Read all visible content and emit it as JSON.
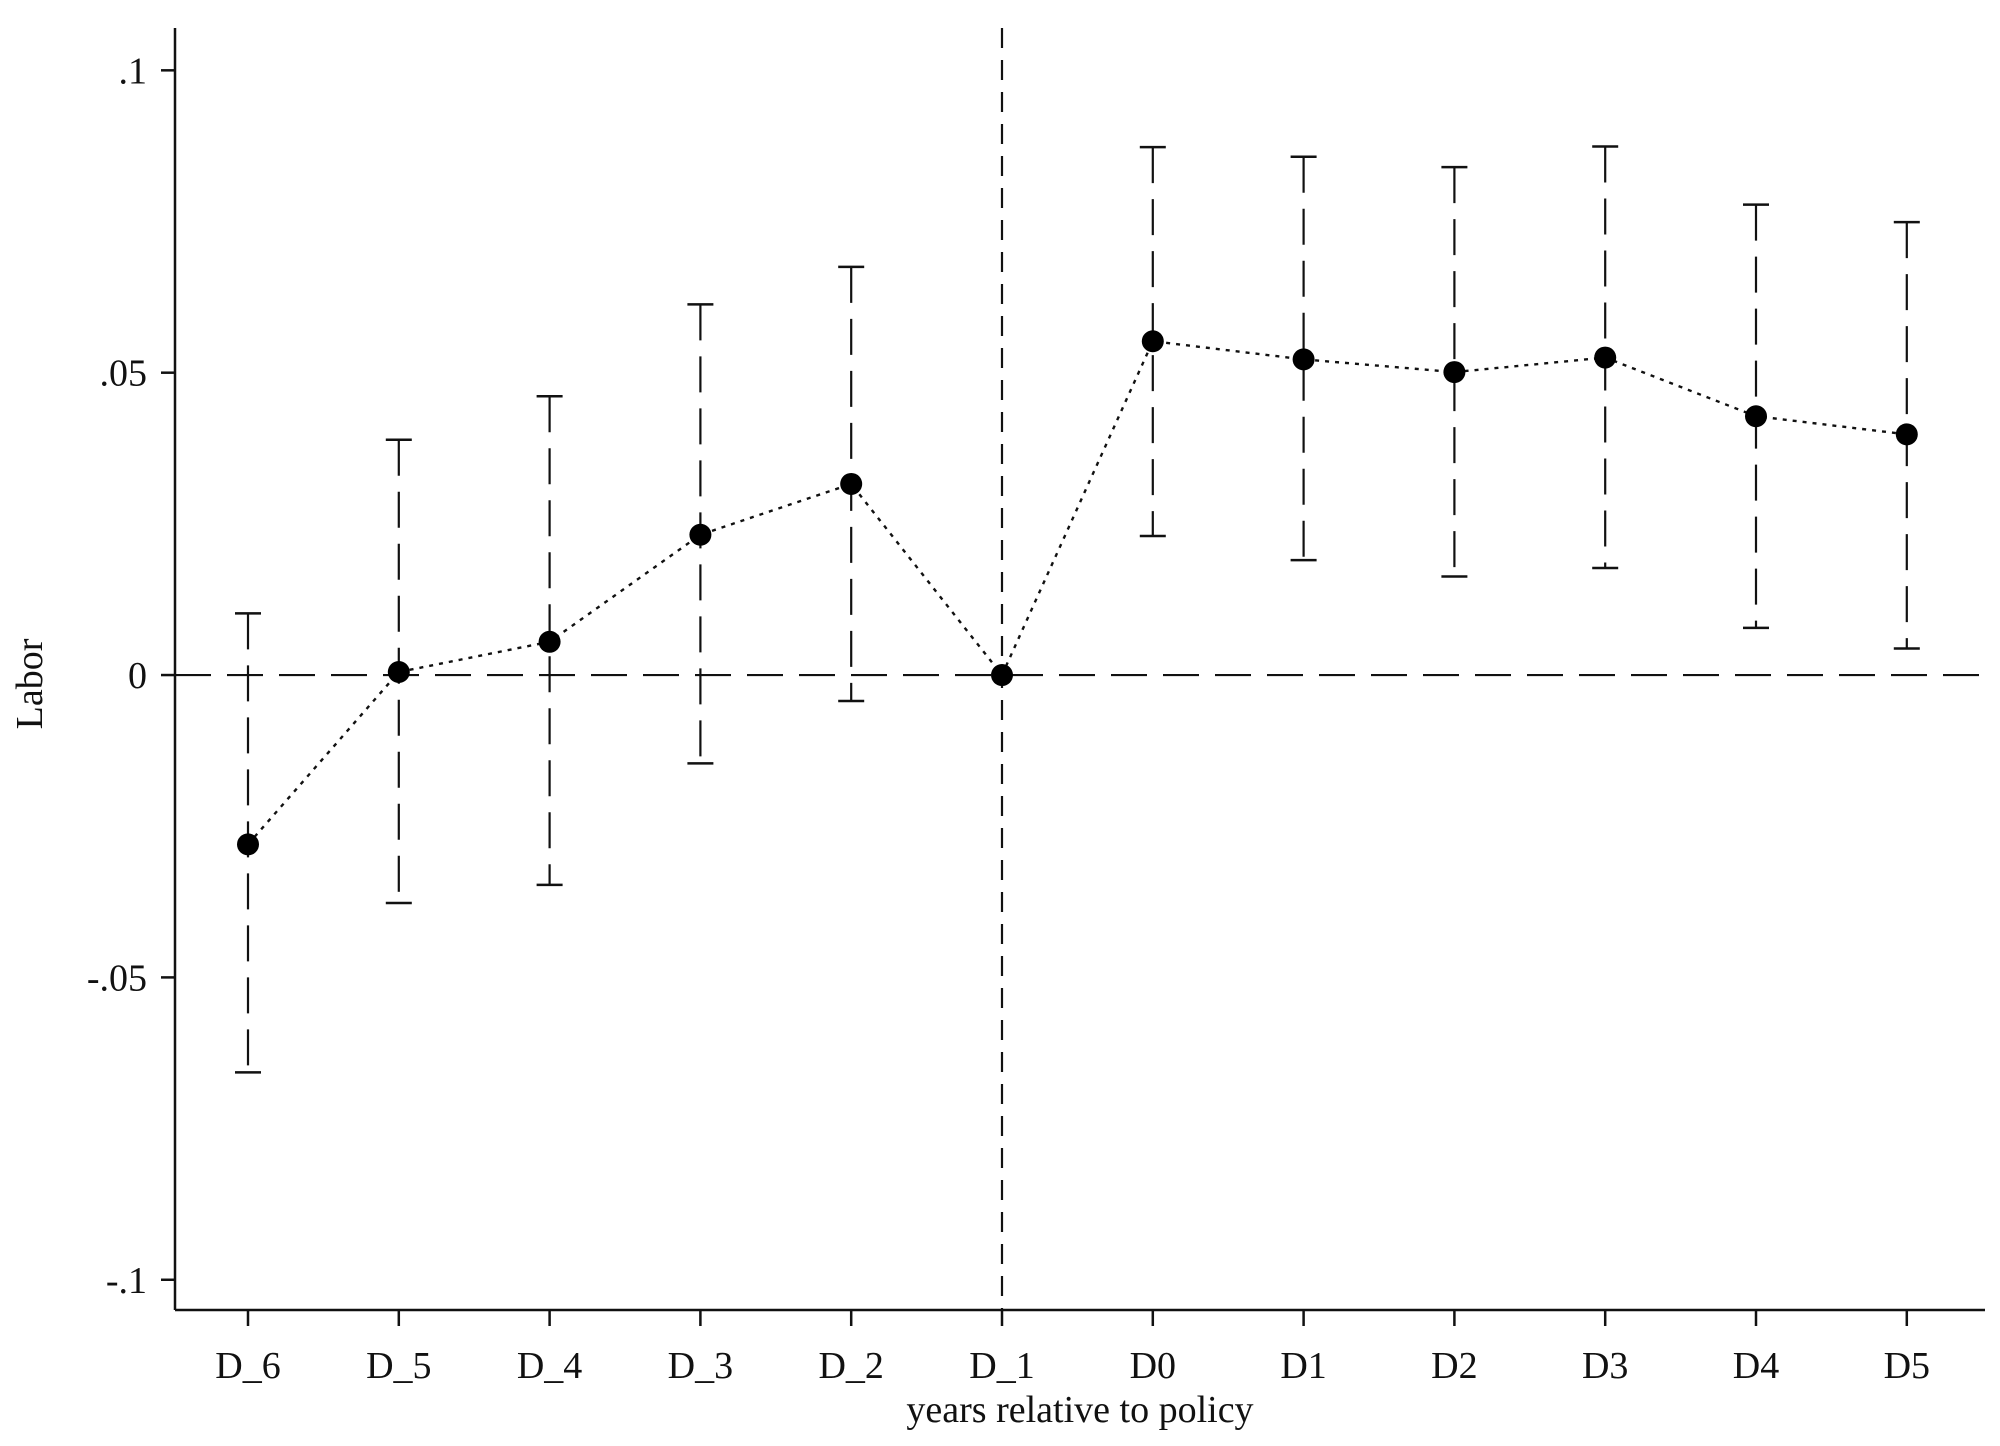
{
  "chart_data": {
    "type": "scatter",
    "xlabel": "years relative to policy",
    "ylabel": "Labor",
    "categories": [
      "D_6",
      "D_5",
      "D_4",
      "D_3",
      "D_2",
      "D_1",
      "D0",
      "D1",
      "D2",
      "D3",
      "D4",
      "D5"
    ],
    "series": [
      {
        "values": [
          -0.028,
          0.0005,
          0.0055,
          0.0232,
          0.0316,
          0.0,
          0.0552,
          0.0522,
          0.0501,
          0.0525,
          0.0428,
          0.0398
        ],
        "ci_lower": [
          -0.0657,
          -0.0377,
          -0.0347,
          -0.0146,
          -0.0043,
          null,
          0.023,
          0.019,
          0.0163,
          0.0177,
          0.0078,
          0.0044
        ],
        "ci_upper": [
          0.0102,
          0.0389,
          0.0461,
          0.0613,
          0.0675,
          null,
          0.0873,
          0.0857,
          0.084,
          0.0874,
          0.0778,
          0.0749
        ]
      }
    ],
    "ylim": [
      -0.105,
      0.107
    ],
    "yticks": [
      {
        "value": 0.1,
        "label": ".1"
      },
      {
        "value": 0.05,
        "label": ".05"
      },
      {
        "value": 0,
        "label": "0"
      },
      {
        "value": -0.05,
        "label": "-.05"
      },
      {
        "value": -0.1,
        "label": "-.1"
      }
    ],
    "reference_lines": {
      "horizontal": 0,
      "vertical_at_category": "D_1"
    },
    "grid": false,
    "legend": "none"
  }
}
